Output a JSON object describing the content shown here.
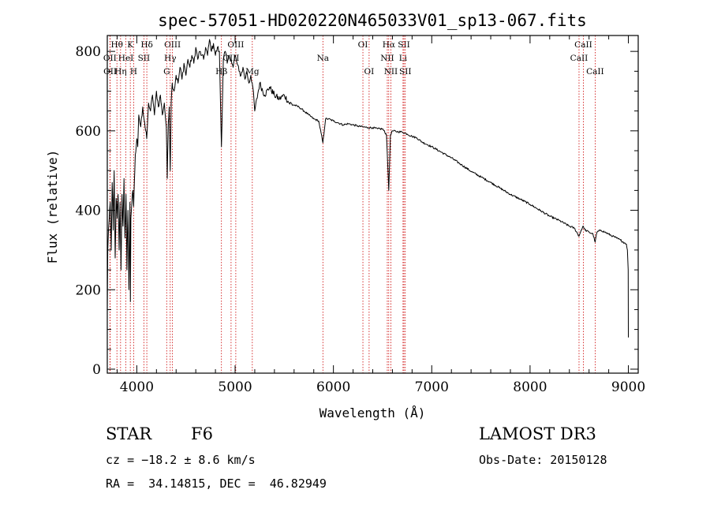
{
  "chart_data": {
    "type": "line",
    "title": "spec-57051-HD020220N465033V01_sp13-067.fits",
    "xlabel": "Wavelength (Å)",
    "ylabel": "Flux (relative)",
    "xlim": [
      3700,
      9100
    ],
    "ylim": [
      -10,
      840
    ],
    "x_ticks": [
      4000,
      5000,
      6000,
      7000,
      8000,
      9000
    ],
    "y_ticks": [
      0,
      200,
      400,
      600,
      800
    ],
    "series": [
      {
        "name": "flux",
        "color": "#000000",
        "x": [
          3700,
          3705,
          3712,
          3720,
          3730,
          3740,
          3750,
          3760,
          3770,
          3780,
          3790,
          3800,
          3810,
          3820,
          3830,
          3840,
          3850,
          3860,
          3870,
          3880,
          3890,
          3900,
          3910,
          3920,
          3930,
          3935,
          3940,
          3950,
          3960,
          3968,
          3975,
          3985,
          4000,
          4010,
          4020,
          4040,
          4060,
          4080,
          4101,
          4120,
          4140,
          4160,
          4180,
          4200,
          4220,
          4240,
          4260,
          4280,
          4300,
          4310,
          4320,
          4330,
          4340,
          4350,
          4360,
          4380,
          4400,
          4420,
          4440,
          4460,
          4480,
          4500,
          4520,
          4540,
          4560,
          4580,
          4600,
          4620,
          4640,
          4660,
          4680,
          4700,
          4720,
          4740,
          4760,
          4780,
          4800,
          4820,
          4840,
          4861,
          4880,
          4900,
          4920,
          4940,
          4960,
          4980,
          5000,
          5020,
          5040,
          5060,
          5080,
          5100,
          5120,
          5140,
          5160,
          5180,
          5200,
          5250,
          5300,
          5350,
          5400,
          5450,
          5500,
          5550,
          5600,
          5650,
          5700,
          5750,
          5800,
          5850,
          5893,
          5920,
          5950,
          6000,
          6050,
          6100,
          6150,
          6200,
          6250,
          6300,
          6350,
          6400,
          6450,
          6500,
          6540,
          6563,
          6580,
          6600,
          6650,
          6700,
          6750,
          6800,
          6850,
          6900,
          6950,
          7000,
          7100,
          7200,
          7300,
          7400,
          7500,
          7600,
          7700,
          7800,
          7900,
          8000,
          8100,
          8200,
          8300,
          8400,
          8450,
          8498,
          8520,
          8542,
          8560,
          8600,
          8640,
          8662,
          8680,
          8720,
          8760,
          8800,
          8840,
          8880,
          8920,
          8960,
          8980,
          8990,
          8998,
          9000
        ],
        "values": [
          150,
          300,
          350,
          380,
          420,
          300,
          470,
          350,
          500,
          280,
          430,
          380,
          440,
          300,
          420,
          250,
          440,
          360,
          480,
          330,
          440,
          250,
          400,
          200,
          420,
          170,
          380,
          420,
          450,
          410,
          470,
          540,
          580,
          560,
          640,
          610,
          660,
          620,
          580,
          670,
          650,
          690,
          640,
          700,
          660,
          690,
          640,
          670,
          610,
          480,
          620,
          660,
          500,
          670,
          720,
          700,
          740,
          720,
          760,
          730,
          770,
          740,
          780,
          760,
          790,
          770,
          810,
          780,
          800,
          790,
          780,
          810,
          790,
          830,
          800,
          820,
          790,
          810,
          800,
          560,
          780,
          800,
          770,
          790,
          780,
          760,
          790,
          770,
          750,
          740,
          760,
          730,
          750,
          720,
          740,
          710,
          650,
          720,
          690,
          710,
          690,
          680,
          690,
          670,
          665,
          660,
          650,
          640,
          630,
          625,
          570,
          630,
          630,
          625,
          620,
          615,
          618,
          615,
          612,
          610,
          608,
          608,
          605,
          605,
          590,
          450,
          590,
          600,
          598,
          597,
          592,
          586,
          582,
          572,
          566,
          560,
          546,
          532,
          515,
          498,
          484,
          470,
          455,
          440,
          428,
          415,
          400,
          385,
          374,
          360,
          355,
          335,
          350,
          360,
          350,
          345,
          340,
          320,
          345,
          350,
          345,
          340,
          335,
          330,
          325,
          318,
          315,
          300,
          250,
          80
        ]
      }
    ],
    "line_markers": [
      {
        "label": "Hθ",
        "wavelength": 3798,
        "row": 0
      },
      {
        "label": "K",
        "wavelength": 3934,
        "row": 0
      },
      {
        "label": "Hδ",
        "wavelength": 4102,
        "row": 0
      },
      {
        "label": "OIII",
        "wavelength": 4363,
        "row": 0
      },
      {
        "label": "OIII",
        "wavelength": 5007,
        "row": 0
      },
      {
        "label": "OI",
        "wavelength": 6300,
        "row": 0
      },
      {
        "label": "Hα",
        "wavelength": 6563,
        "row": 0
      },
      {
        "label": "SII",
        "wavelength": 6717,
        "row": 0
      },
      {
        "label": "CaII",
        "wavelength": 8542,
        "row": 0
      },
      {
        "label": "OII",
        "wavelength": 3727,
        "row": 1
      },
      {
        "label": "HeI",
        "wavelength": 3889,
        "row": 1
      },
      {
        "label": "SII",
        "wavelength": 4072,
        "row": 1
      },
      {
        "label": "Hγ",
        "wavelength": 4340,
        "row": 1
      },
      {
        "label": "OIII",
        "wavelength": 4959,
        "row": 1
      },
      {
        "label": "Na",
        "wavelength": 5893,
        "row": 1
      },
      {
        "label": "NII",
        "wavelength": 6548,
        "row": 1
      },
      {
        "label": "Li",
        "wavelength": 6708,
        "row": 1
      },
      {
        "label": "CaII",
        "wavelength": 8498,
        "row": 1
      },
      {
        "label": "OII",
        "wavelength": 3729,
        "row": 2
      },
      {
        "label": "Hη",
        "wavelength": 3835,
        "row": 2
      },
      {
        "label": "H",
        "wavelength": 3968,
        "row": 2
      },
      {
        "label": "G",
        "wavelength": 4304,
        "row": 2
      },
      {
        "label": "Hβ",
        "wavelength": 4861,
        "row": 2
      },
      {
        "label": "Mg",
        "wavelength": 5175,
        "row": 2
      },
      {
        "label": "OI",
        "wavelength": 6363,
        "row": 2
      },
      {
        "label": "NII",
        "wavelength": 6584,
        "row": 2
      },
      {
        "label": "SII",
        "wavelength": 6731,
        "row": 2
      },
      {
        "label": "CaII",
        "wavelength": 8662,
        "row": 2
      }
    ],
    "marker_color": "#cc0000"
  },
  "info": {
    "object_class": "STAR",
    "subclass": "F6",
    "survey": "LAMOST DR3",
    "redshift": "cz = −18.2 ± 8.6 km/s",
    "obs_date": "Obs-Date: 20150128",
    "coords": "RA =  34.14815, DEC =  46.82949"
  }
}
